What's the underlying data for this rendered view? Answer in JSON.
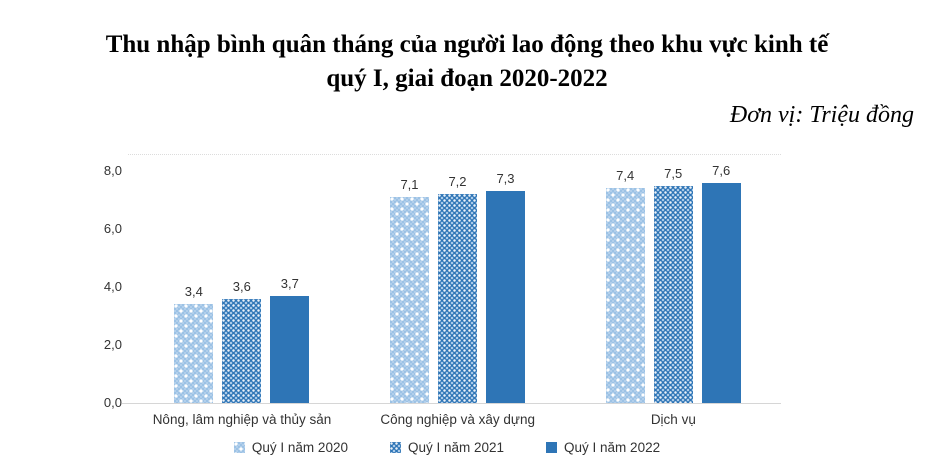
{
  "title": {
    "line1": "Thu nhập bình quân tháng của người lao động theo khu vực kinh tế",
    "line2": "quý I, giai đoạn 2020-2022"
  },
  "unit_label": "Đơn vị: Triệu đồng",
  "chart_data": {
    "type": "bar",
    "categories": [
      "Nông, lâm nghiệp và thủy sản",
      "Công nghiệp và xây dựng",
      "Dịch vụ"
    ],
    "series": [
      {
        "name": "Quý I năm 2020",
        "values": [
          3.4,
          7.1,
          7.4
        ],
        "labels": [
          "3,4",
          "7,1",
          "7,4"
        ],
        "fill": "light-blue-dotted-diamond",
        "color": "#9CC2E5"
      },
      {
        "name": "Quý I năm 2021",
        "values": [
          3.6,
          7.2,
          7.5
        ],
        "labels": [
          "3,6",
          "7,2",
          "7,5"
        ],
        "fill": "blue-dotted-grid",
        "color": "#2E75B6"
      },
      {
        "name": "Quý I năm 2022",
        "values": [
          3.7,
          7.3,
          7.6
        ],
        "labels": [
          "3,7",
          "7,3",
          "7,6"
        ],
        "fill": "solid",
        "color": "#2E75B6"
      }
    ],
    "y_axis": {
      "min": 0,
      "max": 8,
      "tick_step": 2,
      "tick_labels": [
        "0,0",
        "2,0",
        "4,0",
        "6,0",
        "8,0"
      ]
    },
    "grid": false,
    "legend_position": "bottom",
    "value_labels_shown": true
  }
}
